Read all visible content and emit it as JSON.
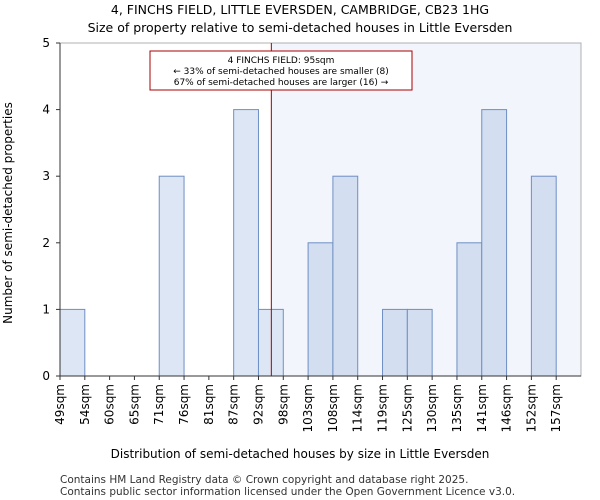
{
  "chart_data": {
    "type": "bar",
    "title": "4, FINCHS FIELD, LITTLE EVERSDEN, CAMBRIDGE, CB23 1HG",
    "subtitle": "Size of property relative to semi-detached houses in Little Eversden",
    "xlabel": "Distribution of semi-detached houses by size in Little Eversden",
    "ylabel": "Number of semi-detached properties",
    "categories": [
      "49sqm",
      "54sqm",
      "60sqm",
      "65sqm",
      "71sqm",
      "76sqm",
      "81sqm",
      "87sqm",
      "92sqm",
      "98sqm",
      "103sqm",
      "108sqm",
      "114sqm",
      "119sqm",
      "125sqm",
      "130sqm",
      "135sqm",
      "141sqm",
      "146sqm",
      "152sqm",
      "157sqm"
    ],
    "values": [
      1,
      0,
      0,
      0,
      3,
      0,
      0,
      4,
      1,
      0,
      2,
      3,
      0,
      1,
      1,
      0,
      2,
      4,
      0,
      3,
      0
    ],
    "ylim": [
      0,
      5
    ],
    "yticks": [
      0,
      1,
      2,
      3,
      4,
      5
    ],
    "marker": {
      "value_sqm": 95,
      "color": "#aa0000",
      "lines": [
        "4 FINCHS FIELD: 95sqm",
        "← 33% of semi-detached houses are smaller (8)",
        "67% of semi-detached houses are larger (16) →"
      ]
    },
    "colors": {
      "bar_smaller": "#dce6f4",
      "bar_larger": "#d3def1",
      "bar_edge": "#6e8fc4",
      "shade": "#f2f5fc"
    }
  },
  "footer": {
    "line1": "Contains HM Land Registry data © Crown copyright and database right 2025.",
    "line2": "Contains public sector information licensed under the Open Government Licence v3.0."
  }
}
